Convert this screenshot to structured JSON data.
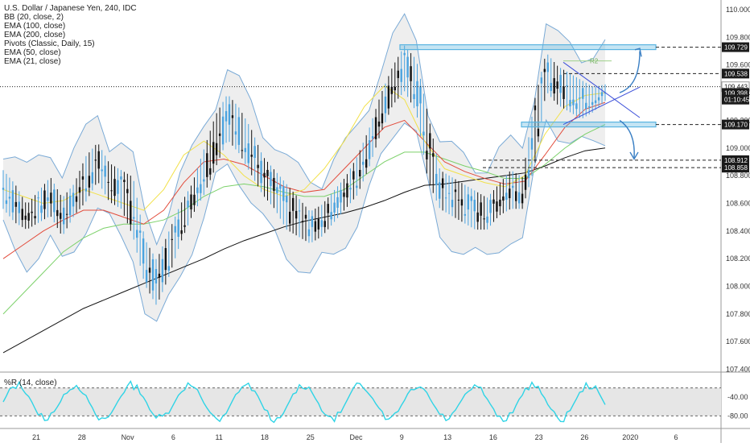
{
  "legend": {
    "symbol": "U.S. Dollar / Japanese Yen, 240, IDC",
    "bb": "BB (20, close, 2)",
    "ema100": "EMA (100, close)",
    "ema200": "EMA (200, close)",
    "pivots": "Pivots (Classic, Daily, 15)",
    "ema50": "EMA (50, close)",
    "ema21": "EMA (21, close)"
  },
  "indicator_label": "%R (14, close)",
  "colors": {
    "candle": "#111111",
    "candle_up": "#4aa3df",
    "bb": "#7aaad6",
    "ema21": "#f2e14a",
    "ema50": "#e24b3b",
    "ema100": "#7cd16a",
    "ema200": "#111111",
    "wr": "#2fd4e6",
    "level_box": "#5ab4e0",
    "dash": "#222222"
  },
  "chart_data": {
    "type": "candlestick",
    "y_ticks": [
      "110.000",
      "109.800",
      "109.600",
      "109.400",
      "109.200",
      "109.000",
      "108.800",
      "108.600",
      "108.400",
      "108.200",
      "108.000",
      "107.800",
      "107.600",
      "107.400"
    ],
    "x_ticks": [
      "21",
      "28",
      "Nov",
      "6",
      "11",
      "18",
      "25",
      "Dec",
      "9",
      "13",
      "16",
      "23",
      "26",
      "2020",
      "6"
    ],
    "ylim": [
      107.38,
      110.07
    ],
    "price_labels": [
      {
        "text": "109.729",
        "value": 109.729,
        "dark": true
      },
      {
        "text": "109.538",
        "value": 109.538,
        "dark": true
      },
      {
        "text": "109.443",
        "value": 109.443,
        "dark": false
      },
      {
        "text": "109.398",
        "value": 109.398,
        "dark": true
      },
      {
        "text": "01:10:45",
        "value": 109.35,
        "dark": true
      },
      {
        "text": "109.170",
        "value": 109.17,
        "dark": true
      },
      {
        "text": "108.912",
        "value": 108.912,
        "dark": true
      },
      {
        "text": "108.858",
        "value": 108.858,
        "dark": true
      }
    ],
    "pivot_label": "R2",
    "wr_ticks": [
      "-40.00",
      "-80.00"
    ],
    "ohlc_waypoints": [
      [
        108.8,
        108.6
      ],
      [
        108.7,
        108.5
      ],
      [
        108.55,
        108.45
      ],
      [
        108.65,
        108.5
      ],
      [
        108.75,
        108.55
      ],
      [
        108.6,
        108.4
      ],
      [
        108.7,
        108.55
      ],
      [
        108.9,
        108.65
      ],
      [
        109.0,
        108.8
      ],
      [
        108.85,
        108.65
      ],
      [
        108.8,
        108.6
      ],
      [
        108.75,
        108.4
      ],
      [
        108.3,
        108.05
      ],
      [
        108.15,
        107.9
      ],
      [
        108.35,
        108.1
      ],
      [
        108.55,
        108.35
      ],
      [
        108.7,
        108.55
      ],
      [
        108.95,
        108.7
      ],
      [
        109.2,
        108.9
      ],
      [
        109.35,
        109.1
      ],
      [
        109.25,
        109.0
      ],
      [
        109.1,
        108.85
      ],
      [
        108.9,
        108.7
      ],
      [
        108.8,
        108.6
      ],
      [
        108.7,
        108.45
      ],
      [
        108.6,
        108.4
      ],
      [
        108.5,
        108.35
      ],
      [
        108.55,
        108.4
      ],
      [
        108.65,
        108.5
      ],
      [
        108.75,
        108.6
      ],
      [
        108.9,
        108.7
      ],
      [
        109.1,
        108.9
      ],
      [
        109.35,
        109.15
      ],
      [
        109.55,
        109.35
      ],
      [
        109.7,
        109.45
      ],
      [
        109.6,
        109.3
      ],
      [
        109.2,
        108.8
      ],
      [
        108.8,
        108.6
      ],
      [
        108.75,
        108.55
      ],
      [
        108.7,
        108.5
      ],
      [
        108.65,
        108.45
      ],
      [
        108.6,
        108.45
      ],
      [
        108.7,
        108.55
      ],
      [
        108.8,
        108.6
      ],
      [
        108.75,
        108.6
      ],
      [
        109.3,
        108.9
      ],
      [
        109.65,
        109.45
      ],
      [
        109.55,
        109.35
      ],
      [
        109.5,
        109.3
      ],
      [
        109.45,
        109.25
      ],
      [
        109.4,
        109.3
      ],
      [
        109.42,
        109.38
      ]
    ],
    "ema_levels": {
      "ema21": [
        108.7,
        108.65,
        108.6,
        108.62,
        108.7,
        108.65,
        108.6,
        108.55,
        108.7,
        108.95,
        109.05,
        108.95,
        108.8,
        108.7,
        108.65,
        108.7,
        108.85,
        109.05,
        109.3,
        109.45,
        109.35,
        109.05,
        108.85,
        108.8,
        108.75,
        108.72,
        108.8,
        109.1,
        109.3,
        109.38,
        109.4
      ],
      "ema50": [
        108.2,
        108.3,
        108.4,
        108.48,
        108.55,
        108.55,
        108.5,
        108.45,
        108.55,
        108.75,
        108.9,
        108.92,
        108.88,
        108.8,
        108.72,
        108.68,
        108.7,
        108.85,
        109.0,
        109.15,
        109.2,
        109.05,
        108.9,
        108.83,
        108.78,
        108.74,
        108.76,
        108.95,
        109.15,
        109.28,
        109.33
      ],
      "ema100": [
        107.8,
        107.95,
        108.1,
        108.25,
        108.35,
        108.42,
        108.45,
        108.45,
        108.48,
        108.55,
        108.65,
        108.72,
        108.74,
        108.72,
        108.68,
        108.65,
        108.65,
        108.7,
        108.8,
        108.9,
        108.97,
        108.97,
        108.92,
        108.87,
        108.83,
        108.78,
        108.78,
        108.88,
        109.0,
        109.1,
        109.17
      ],
      "ema200": [
        107.52,
        107.6,
        107.68,
        107.76,
        107.84,
        107.9,
        107.96,
        108.02,
        108.08,
        108.14,
        108.2,
        108.27,
        108.33,
        108.38,
        108.43,
        108.47,
        108.5,
        108.53,
        108.57,
        108.62,
        108.68,
        108.73,
        108.74,
        108.76,
        108.78,
        108.8,
        108.82,
        108.87,
        108.93,
        108.98,
        109.0
      ]
    }
  }
}
